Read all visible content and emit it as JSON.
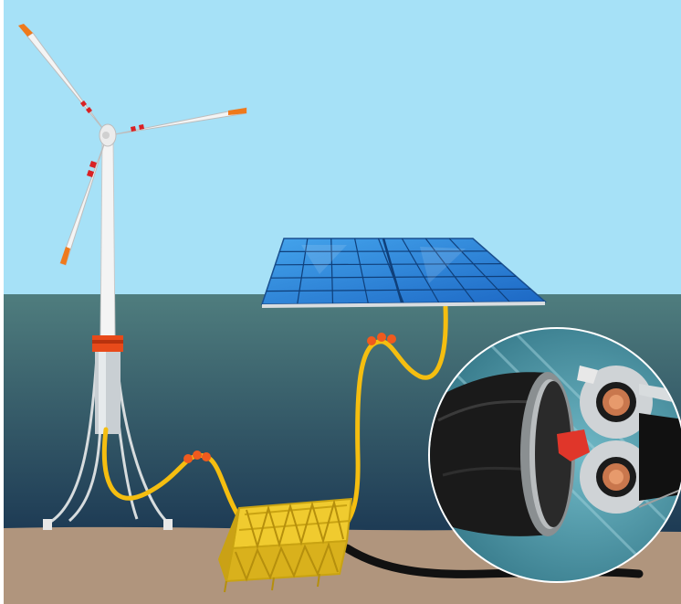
{
  "colors": {
    "sky": "#a6e1f7",
    "sea_top": "#4f7d7e",
    "sea_bottom": "#1d3a54",
    "seabed": "#b0957d",
    "cable": "#f5be10",
    "float": "#f05a1e",
    "turbine": "#f4f4f4",
    "blade_tip": "#ef7a1c",
    "blade_stripe": "#d92124",
    "solar_panel": "#2b88d8",
    "subsea_hub": "#e8c12a",
    "export_cable": "#111111"
  },
  "icons": {
    "wind_turbine": "wind-turbine-icon",
    "floating_solar": "solar-panel-icon",
    "subsea_hub": "subsea-hub-icon",
    "cable_cross_section": "cable-cross-section-icon"
  }
}
